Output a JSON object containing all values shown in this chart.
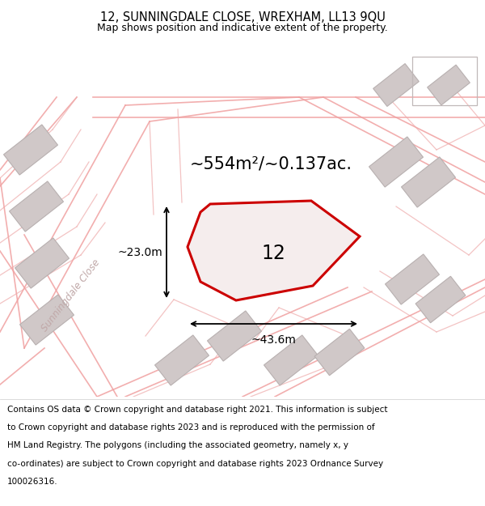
{
  "title_line1": "12, SUNNINGDALE CLOSE, WREXHAM, LL13 9QU",
  "title_line2": "Map shows position and indicative extent of the property.",
  "area_label": "~554m²/~0.137ac.",
  "width_label": "~43.6m",
  "height_label": "~23.0m",
  "plot_number": "12",
  "street_label": "Sunningdale Close",
  "footer_lines": [
    "Contains OS data © Crown copyright and database right 2021. This information is subject",
    "to Crown copyright and database rights 2023 and is reproduced with the permission of",
    "HM Land Registry. The polygons (including the associated geometry, namely x, y",
    "co-ordinates) are subject to Crown copyright and database rights 2023 Ordnance Survey",
    "100026316."
  ],
  "bg_color": "#ffffff",
  "map_bg": "#f7f2f2",
  "plot_color": "#cc0000",
  "plot_fill": "#f5eded",
  "building_fill": "#d0c8c8",
  "building_edge": "#b8b0b0",
  "road_color": "#f0a0a0",
  "title_fontsize": 10.5,
  "subtitle_fontsize": 9.0,
  "footer_fontsize": 7.5,
  "area_fontsize": 15,
  "number_fontsize": 17,
  "dim_fontsize": 10,
  "street_fontsize": 8.5
}
